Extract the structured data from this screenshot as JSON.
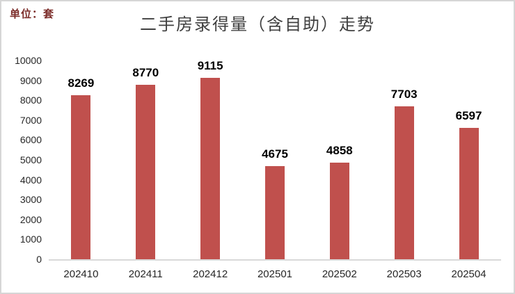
{
  "header": {
    "unit_label": "单位：套",
    "title": "二手房录得量（含自助）走势"
  },
  "colors": {
    "bar": "#c0504d",
    "title": "#404040",
    "unit_label": "#7b2c29",
    "axis_line": "#d9d9d9",
    "tick_text": "#262626",
    "data_label": "#000000",
    "frame_border": "#d6d6d6",
    "background": "#ffffff"
  },
  "chart_data": {
    "type": "bar",
    "title": "二手房录得量（含自助）走势",
    "unit": "单位：套",
    "categories": [
      "202410",
      "202411",
      "202412",
      "202501",
      "202502",
      "202503",
      "202504"
    ],
    "values": [
      8269,
      8770,
      9115,
      4675,
      4858,
      7703,
      6597
    ],
    "xlabel": "",
    "ylabel": "",
    "ylim": [
      0,
      10000
    ],
    "ytick_step": 1000,
    "yticks": [
      0,
      1000,
      2000,
      3000,
      4000,
      5000,
      6000,
      7000,
      8000,
      9000,
      10000
    ],
    "grid": false,
    "legend": false,
    "data_labels": true
  }
}
